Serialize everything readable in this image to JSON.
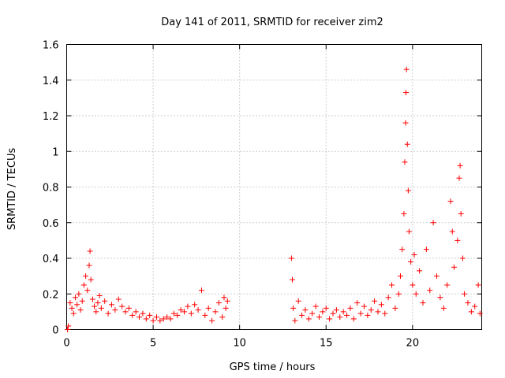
{
  "chart_data": {
    "type": "scatter",
    "title": "Day 141 of 2011, SRMTID for receiver zim2",
    "xlabel": "GPS time / hours",
    "ylabel": "SRMTID / TECUs",
    "xlim": [
      0,
      24
    ],
    "ylim": [
      0,
      1.6
    ],
    "xticks": [
      0,
      5,
      10,
      15,
      20
    ],
    "xtick_labels": [
      "0",
      "5",
      "10",
      "15",
      "20"
    ],
    "yticks": [
      0,
      0.2,
      0.4,
      0.6,
      0.8,
      1,
      1.2,
      1.4,
      1.6
    ],
    "ytick_labels": [
      "0",
      "0.2",
      "0.4",
      "0.6",
      "0.8",
      "1",
      "1.2",
      "1.4",
      "1.6"
    ],
    "grid": true,
    "marker": "+",
    "colors": {
      "series": "#ff0000",
      "axis": "#000000",
      "grid": "#a0a0a0"
    },
    "series": [
      {
        "name": "SRMTID",
        "points": [
          [
            0.05,
            0.0
          ],
          [
            0.1,
            0.02
          ],
          [
            0.2,
            0.15
          ],
          [
            0.3,
            0.12
          ],
          [
            0.4,
            0.09
          ],
          [
            0.5,
            0.18
          ],
          [
            0.6,
            0.14
          ],
          [
            0.7,
            0.2
          ],
          [
            0.8,
            0.11
          ],
          [
            0.9,
            0.16
          ],
          [
            1.0,
            0.25
          ],
          [
            1.1,
            0.3
          ],
          [
            1.2,
            0.22
          ],
          [
            1.3,
            0.36
          ],
          [
            1.35,
            0.44
          ],
          [
            1.4,
            0.28
          ],
          [
            1.5,
            0.17
          ],
          [
            1.6,
            0.13
          ],
          [
            1.7,
            0.1
          ],
          [
            1.8,
            0.15
          ],
          [
            1.9,
            0.19
          ],
          [
            2.0,
            0.12
          ],
          [
            2.2,
            0.16
          ],
          [
            2.4,
            0.09
          ],
          [
            2.6,
            0.14
          ],
          [
            2.8,
            0.11
          ],
          [
            3.0,
            0.17
          ],
          [
            3.2,
            0.13
          ],
          [
            3.4,
            0.1
          ],
          [
            3.6,
            0.12
          ],
          [
            3.8,
            0.08
          ],
          [
            4.0,
            0.1
          ],
          [
            4.2,
            0.07
          ],
          [
            4.4,
            0.09
          ],
          [
            4.6,
            0.06
          ],
          [
            4.8,
            0.08
          ],
          [
            5.0,
            0.05
          ],
          [
            5.2,
            0.07
          ],
          [
            5.4,
            0.05
          ],
          [
            5.6,
            0.06
          ],
          [
            5.8,
            0.07
          ],
          [
            6.0,
            0.06
          ],
          [
            6.2,
            0.09
          ],
          [
            6.4,
            0.08
          ],
          [
            6.6,
            0.11
          ],
          [
            6.8,
            0.1
          ],
          [
            7.0,
            0.13
          ],
          [
            7.2,
            0.09
          ],
          [
            7.4,
            0.14
          ],
          [
            7.6,
            0.11
          ],
          [
            7.8,
            0.22
          ],
          [
            8.0,
            0.08
          ],
          [
            8.2,
            0.12
          ],
          [
            8.4,
            0.05
          ],
          [
            8.6,
            0.1
          ],
          [
            8.8,
            0.15
          ],
          [
            9.0,
            0.07
          ],
          [
            9.1,
            0.18
          ],
          [
            9.2,
            0.12
          ],
          [
            9.3,
            0.16
          ],
          [
            13.0,
            0.4
          ],
          [
            13.05,
            0.28
          ],
          [
            13.1,
            0.12
          ],
          [
            13.2,
            0.05
          ],
          [
            13.4,
            0.16
          ],
          [
            13.6,
            0.08
          ],
          [
            13.8,
            0.11
          ],
          [
            14.0,
            0.06
          ],
          [
            14.2,
            0.09
          ],
          [
            14.4,
            0.13
          ],
          [
            14.6,
            0.07
          ],
          [
            14.8,
            0.1
          ],
          [
            15.0,
            0.12
          ],
          [
            15.2,
            0.06
          ],
          [
            15.4,
            0.09
          ],
          [
            15.6,
            0.11
          ],
          [
            15.8,
            0.07
          ],
          [
            16.0,
            0.1
          ],
          [
            16.2,
            0.08
          ],
          [
            16.4,
            0.12
          ],
          [
            16.6,
            0.06
          ],
          [
            16.8,
            0.15
          ],
          [
            17.0,
            0.09
          ],
          [
            17.2,
            0.13
          ],
          [
            17.4,
            0.08
          ],
          [
            17.6,
            0.11
          ],
          [
            17.8,
            0.16
          ],
          [
            18.0,
            0.1
          ],
          [
            18.2,
            0.14
          ],
          [
            18.4,
            0.09
          ],
          [
            18.6,
            0.18
          ],
          [
            18.8,
            0.25
          ],
          [
            19.0,
            0.12
          ],
          [
            19.2,
            0.2
          ],
          [
            19.3,
            0.3
          ],
          [
            19.4,
            0.45
          ],
          [
            19.5,
            0.65
          ],
          [
            19.55,
            0.94
          ],
          [
            19.6,
            1.16
          ],
          [
            19.62,
            1.33
          ],
          [
            19.65,
            1.46
          ],
          [
            19.7,
            1.04
          ],
          [
            19.75,
            0.78
          ],
          [
            19.8,
            0.55
          ],
          [
            19.9,
            0.38
          ],
          [
            20.0,
            0.25
          ],
          [
            20.1,
            0.42
          ],
          [
            20.2,
            0.2
          ],
          [
            20.4,
            0.33
          ],
          [
            20.6,
            0.15
          ],
          [
            20.8,
            0.45
          ],
          [
            21.0,
            0.22
          ],
          [
            21.2,
            0.6
          ],
          [
            21.4,
            0.3
          ],
          [
            21.6,
            0.18
          ],
          [
            21.8,
            0.12
          ],
          [
            22.0,
            0.25
          ],
          [
            22.2,
            0.72
          ],
          [
            22.3,
            0.55
          ],
          [
            22.4,
            0.35
          ],
          [
            22.6,
            0.5
          ],
          [
            22.7,
            0.85
          ],
          [
            22.75,
            0.92
          ],
          [
            22.8,
            0.65
          ],
          [
            22.9,
            0.4
          ],
          [
            23.0,
            0.2
          ],
          [
            23.2,
            0.15
          ],
          [
            23.4,
            0.1
          ],
          [
            23.6,
            0.13
          ],
          [
            23.8,
            0.25
          ],
          [
            23.9,
            0.09
          ]
        ]
      }
    ]
  }
}
